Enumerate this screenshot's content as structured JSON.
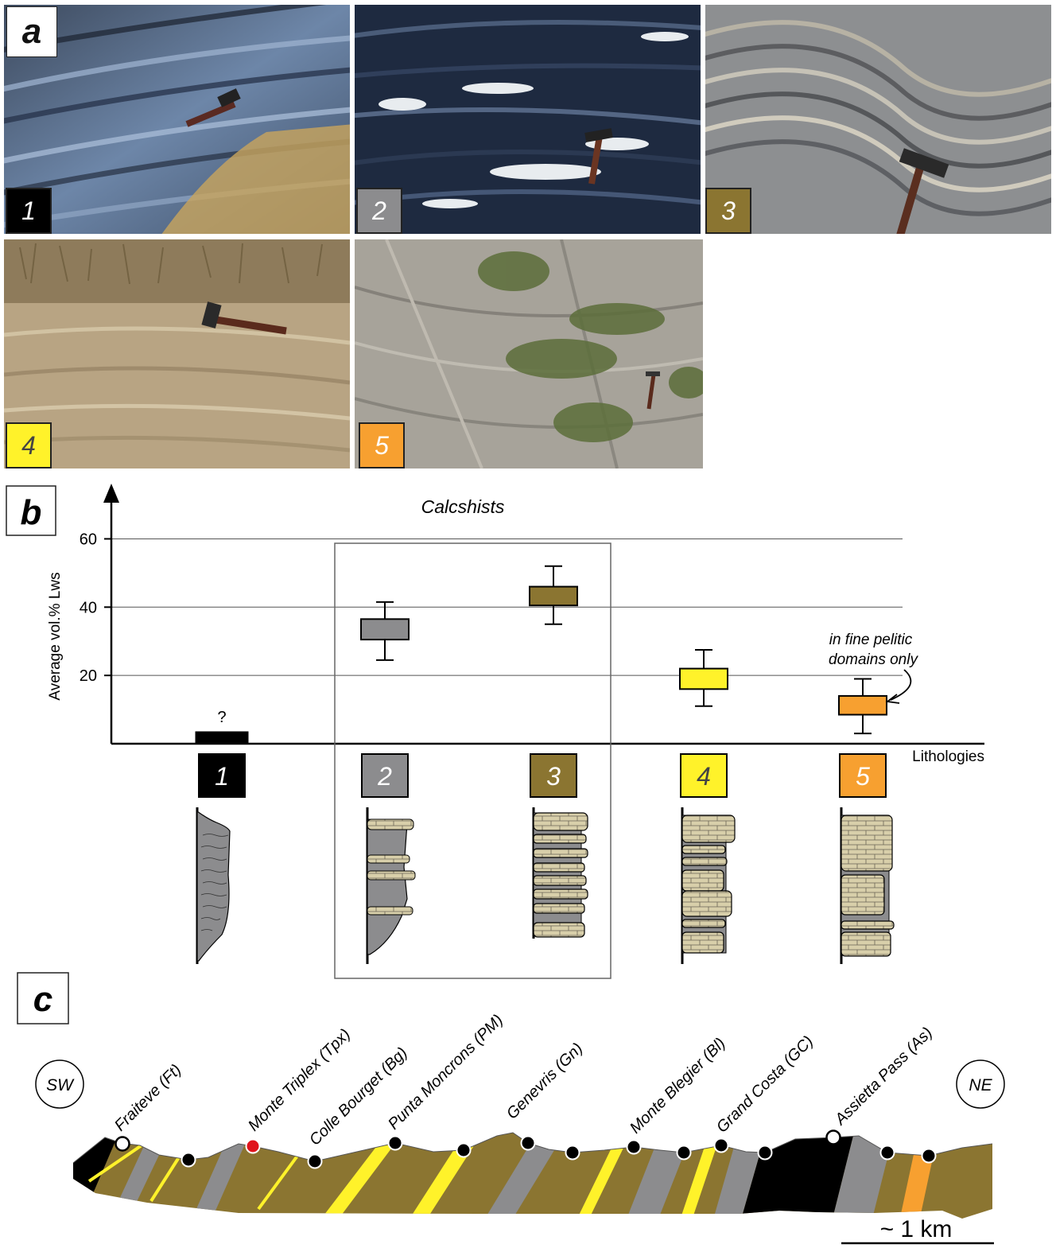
{
  "panel_a": {
    "label": "a",
    "photos": [
      {
        "number": "1",
        "badge_color": "#000000",
        "badge_text_color": "#ffffff"
      },
      {
        "number": "2",
        "badge_color": "#8c8c8e",
        "badge_text_color": "#ffffff"
      },
      {
        "number": "3",
        "badge_color": "#8b7531",
        "badge_text_color": "#ffffff"
      },
      {
        "number": "4",
        "badge_color": "#fff22a",
        "badge_text_color": "#444444"
      },
      {
        "number": "5",
        "badge_color": "#f7a030",
        "badge_text_color": "#ffffff"
      }
    ]
  },
  "panel_b": {
    "label": "b",
    "chart_data": {
      "type": "boxplot",
      "title": "Calcshists",
      "ylabel": "Average vol.% Lws",
      "xlabel": "Lithologies",
      "ylim": [
        0,
        65
      ],
      "yticks": [
        20,
        40,
        60
      ],
      "grid": true,
      "categories": [
        "1",
        "2",
        "3",
        "4",
        "5"
      ],
      "colors": [
        "#000000",
        "#8c8c8e",
        "#8b7531",
        "#fff22a",
        "#f7a030"
      ],
      "boxes": [
        {
          "category": "1",
          "min": 0,
          "q1": 0,
          "q3": 3.5,
          "max": 3.5,
          "note": "?"
        },
        {
          "category": "2",
          "min": 24.5,
          "q1": 30.5,
          "q3": 36.5,
          "max": 41.5
        },
        {
          "category": "3",
          "min": 35,
          "q1": 40.5,
          "q3": 46,
          "max": 52
        },
        {
          "category": "4",
          "min": 11,
          "q1": 16,
          "q3": 22,
          "max": 27.5
        },
        {
          "category": "5",
          "min": 3,
          "q1": 8.5,
          "q3": 14,
          "max": 19
        }
      ],
      "annotation": {
        "line1": "in fine pelitic",
        "line2": "domains only",
        "target": "5"
      }
    }
  },
  "panel_c": {
    "label": "c",
    "sw_label": "SW",
    "ne_label": "NE",
    "scale_label": "~ 1 km",
    "localities": [
      "Fraiteve (Ft)",
      "Monte Triplex (Tpx)",
      "Colle Bourget (Bg)",
      "Punta Moncrons (PM)",
      "Genevris (Gn)",
      "Monte Blegier (Bl)",
      "Grand Costa (GC)",
      "Assietta Pass (As)"
    ]
  },
  "colors": {
    "litho1": "#000000",
    "litho2": "#8c8c8e",
    "litho3": "#8b7531",
    "litho4": "#fff22a",
    "litho5": "#f7a030",
    "limestone": "#d8cfaa",
    "highlight_site": "#e0141c"
  }
}
